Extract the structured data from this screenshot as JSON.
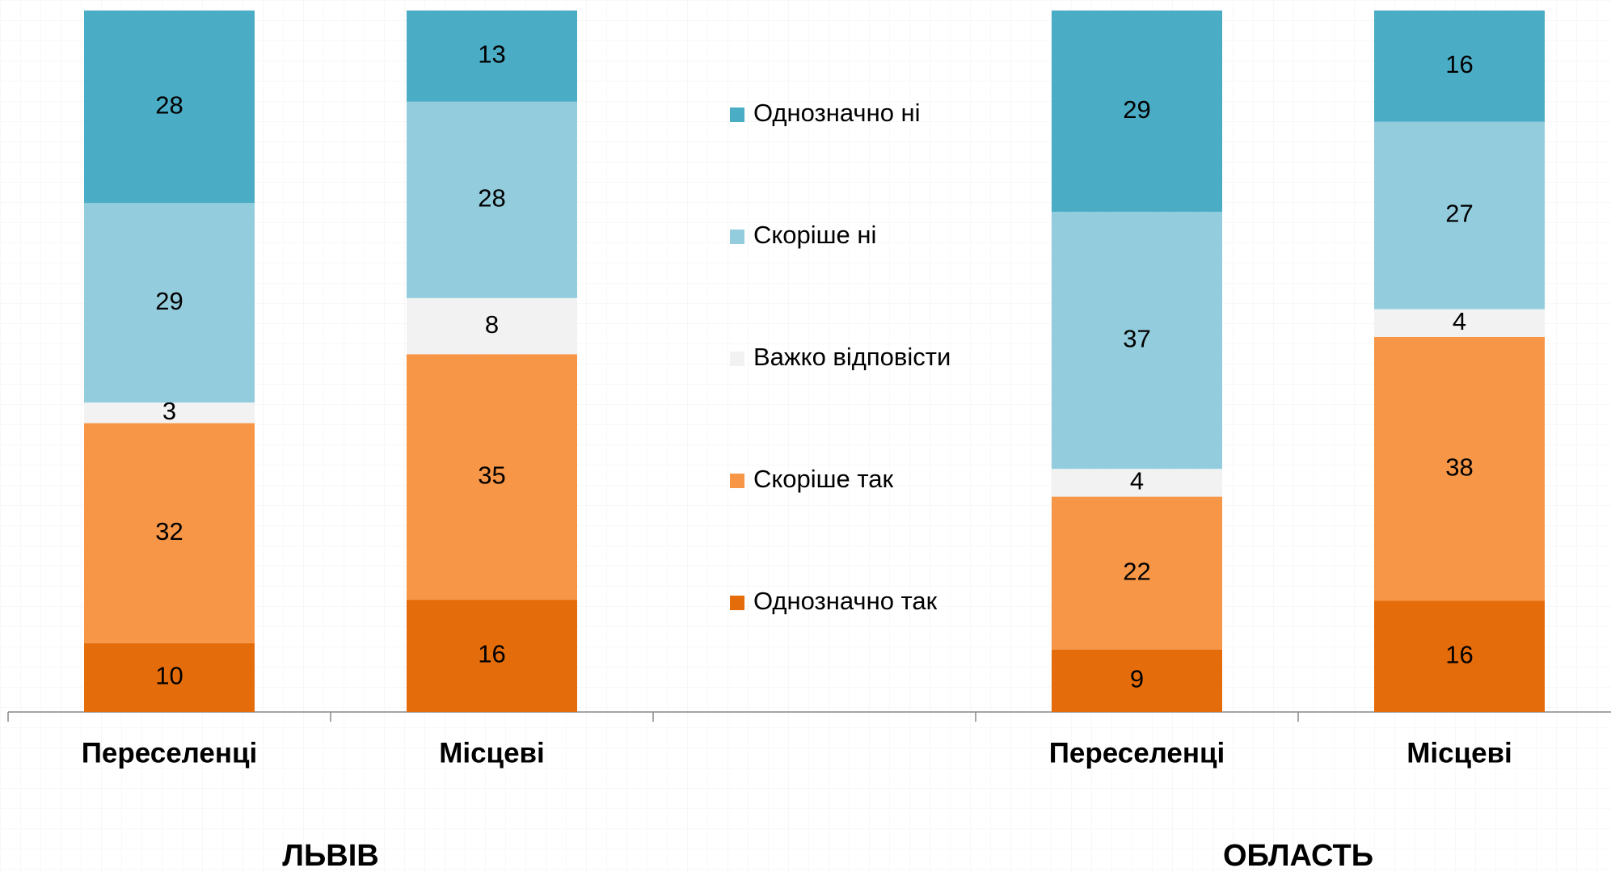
{
  "chart_data": {
    "type": "bar",
    "stacked": "percent",
    "categories": [
      "Переселенці",
      "Місцеві",
      null,
      "Переселенці",
      "Місцеві"
    ],
    "groups": [
      "ЛЬВІВ",
      "ОБЛАСТЬ"
    ],
    "series": [
      {
        "name": "Однозначно так",
        "color": "#e46c0a",
        "values": [
          10,
          16,
          null,
          9,
          16
        ]
      },
      {
        "name": "Скоріше так",
        "color": "#f79646",
        "values": [
          32,
          35,
          null,
          22,
          38
        ]
      },
      {
        "name": "Важко відповісти",
        "color": "#f2f2f2",
        "values": [
          3,
          8,
          null,
          4,
          4
        ]
      },
      {
        "name": "Скоріше ні",
        "color": "#93cddd",
        "values": [
          29,
          28,
          null,
          37,
          27
        ]
      },
      {
        "name": "Однозначно ні",
        "color": "#4bacc6",
        "values": [
          28,
          13,
          null,
          29,
          16
        ]
      }
    ]
  }
}
